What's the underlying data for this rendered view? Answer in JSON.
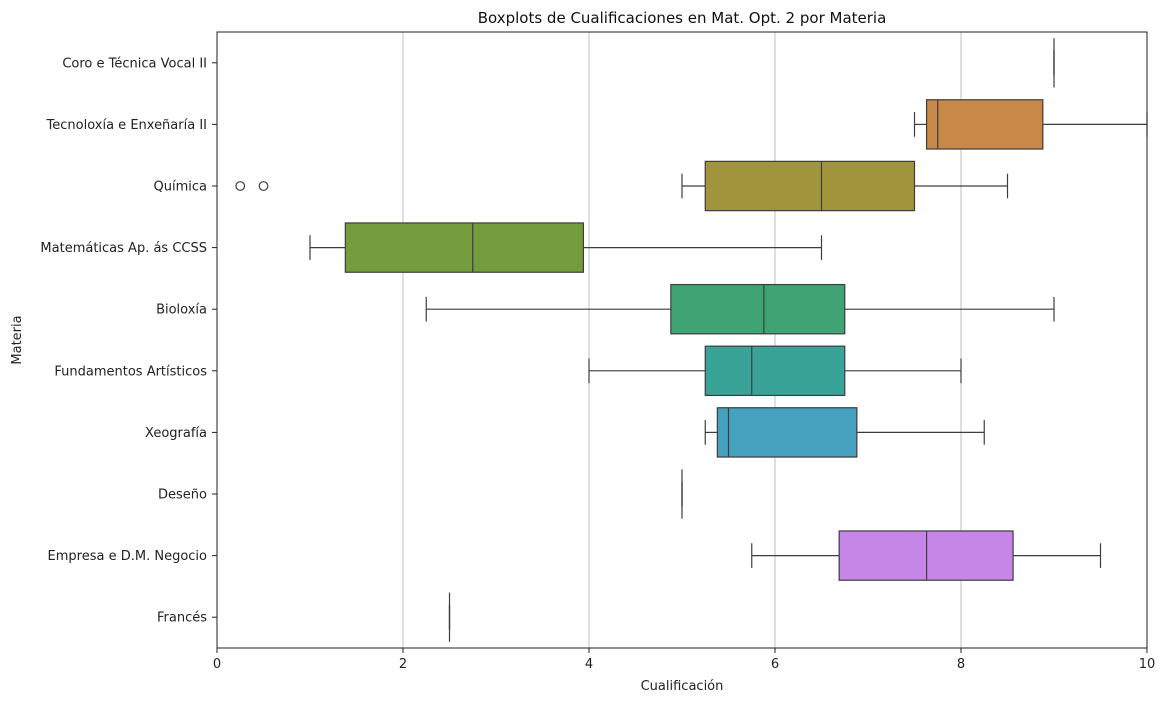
{
  "chart_data": {
    "type": "boxplot",
    "orientation": "horizontal",
    "title": "Boxplots de Cualificaciones en Mat. Opt. 2 por Materia",
    "xlabel": "Cualificación",
    "ylabel": "Materia",
    "xlim": [
      0,
      10
    ],
    "xticks": [
      0,
      2,
      4,
      6,
      8,
      10
    ],
    "grid": "x",
    "categories": [
      "Coro e Técnica Vocal II",
      "Tecnoloxía e Enxeñaría II",
      "Química",
      "Matemáticas Ap. ás CCSS",
      "Bioloxía",
      "Fundamentos Artísticos",
      "Xeografía",
      "Deseño",
      "Empresa e D.M. Negocio",
      "Francés"
    ],
    "boxes": [
      {
        "category": "Coro e Técnica Vocal II",
        "whisker_low": 9,
        "q1": 9,
        "median": 9,
        "q3": 9,
        "whisker_high": 9,
        "outliers": [],
        "color": "#e4877c"
      },
      {
        "category": "Tecnoloxía e Enxeñaría II",
        "whisker_low": 7.5,
        "q1": 7.63,
        "median": 7.75,
        "q3": 8.88,
        "whisker_high": 10,
        "outliers": [],
        "color": "#c88847"
      },
      {
        "category": "Química",
        "whisker_low": 5,
        "q1": 5.25,
        "median": 6.5,
        "q3": 7.5,
        "whisker_high": 8.5,
        "outliers": [
          0.25,
          0.5
        ],
        "color": "#a0953c"
      },
      {
        "category": "Matemáticas Ap. ás CCSS",
        "whisker_low": 1,
        "q1": 1.38,
        "median": 2.75,
        "q3": 3.94,
        "whisker_high": 6.5,
        "outliers": [],
        "color": "#759c3c"
      },
      {
        "category": "Bioloxía",
        "whisker_low": 2.25,
        "q1": 4.88,
        "median": 5.88,
        "q3": 6.75,
        "whisker_high": 9,
        "outliers": [],
        "color": "#3fa374"
      },
      {
        "category": "Fundamentos Artísticos",
        "whisker_low": 4,
        "q1": 5.25,
        "median": 5.75,
        "q3": 6.75,
        "whisker_high": 8,
        "outliers": [],
        "color": "#3aa397"
      },
      {
        "category": "Xeografía",
        "whisker_low": 5.25,
        "q1": 5.38,
        "median": 5.5,
        "q3": 6.88,
        "whisker_high": 8.25,
        "outliers": [],
        "color": "#45a1bd"
      },
      {
        "category": "Deseño",
        "whisker_low": 5,
        "q1": 5,
        "median": 5,
        "q3": 5,
        "whisker_high": 5,
        "outliers": [],
        "color": "#7a9ed8"
      },
      {
        "category": "Empresa e D.M. Negocio",
        "whisker_low": 5.75,
        "q1": 6.69,
        "median": 7.63,
        "q3": 8.56,
        "whisker_high": 9.5,
        "outliers": [],
        "color": "#c586e8"
      },
      {
        "category": "Francés",
        "whisker_low": 2.5,
        "q1": 2.5,
        "median": 2.5,
        "q3": 2.5,
        "whisker_high": 2.5,
        "outliers": [],
        "color": "#e187cc"
      }
    ]
  }
}
